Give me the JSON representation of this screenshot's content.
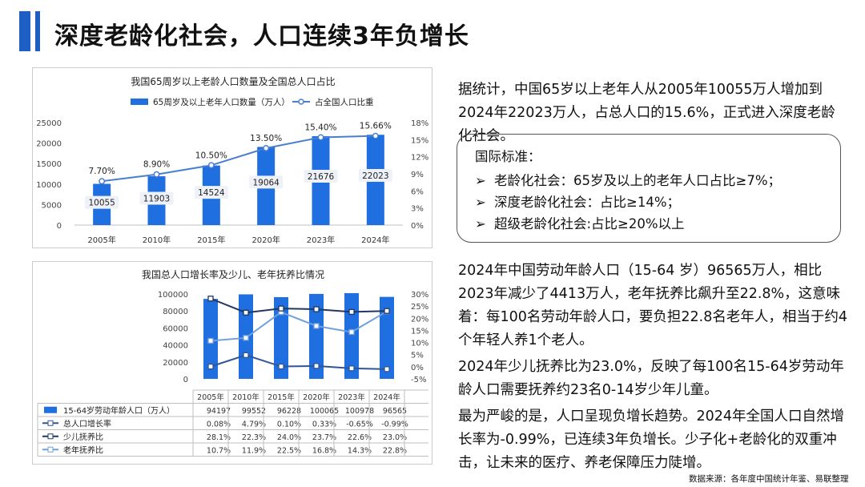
{
  "page": {
    "title": "深度老龄化社会，人口连续3年负增长",
    "source": "数据来源：各年度中国统计年鉴、易联整理"
  },
  "paragraphs": {
    "p1": "据统计，中国65岁以上老年人从2005年10055万人增加到2024年22023万人，占总人口的15.6%，正式进入深度老龄化社会。",
    "p2": "2024年中国劳动年龄人口（15-64 岁）96565万人，相比2023年减少了4413万人，老年抚养比飙升至22.8%，这意味着：每100名劳动年龄人口，要负担22.8名老年人，相当于约4个年轻人养1个老人。",
    "p3": "2024年少儿抚养比为23.0%，反映了每100名15-64岁劳动年龄人口需要抚养约23名0-14岁少年儿童。",
    "p4": "最为严峻的是，人口呈现负增长趋势。2024年全国人口自然增长率为-0.99%，已连续3年负增长。少子化+老龄化的双重冲击，让未来的医疗、养老保障压力陡增。"
  },
  "standards": {
    "title": "国际标准：",
    "arrow": "➢",
    "items": [
      "老龄化社会：65岁及以上的老年人口占比≥7%；",
      "深度老龄化社会：占比≥14%；",
      "超级老龄化社会:占比≥20%以上"
    ]
  },
  "colors": {
    "bar": "#1f6fe0",
    "line1": "#4a7fd0",
    "growth": "#2f5597",
    "child": "#1f3864",
    "old": "#70a0dc",
    "accent": "#1f5fc4"
  },
  "chart_data": [
    {
      "type": "bar",
      "title": "我国65周岁以上老龄人口数量及全国总人口占比",
      "categories": [
        "2005年",
        "2010年",
        "2015年",
        "2020年",
        "2023年",
        "2024年"
      ],
      "series": [
        {
          "name": "65周岁及以上老年人口数量（万人）",
          "type": "bar",
          "axis": "left",
          "values": [
            10055,
            11903,
            14524,
            19064,
            21676,
            22023
          ]
        },
        {
          "name": "占全国人口比重",
          "type": "line",
          "axis": "right",
          "values": [
            7.7,
            8.9,
            10.5,
            13.5,
            15.4,
            15.66
          ],
          "labels": [
            "7.70%",
            "8.90%",
            "10.50%",
            "13.50%",
            "15.40%",
            "15.66%"
          ]
        }
      ],
      "ylim_left": [
        0,
        25000
      ],
      "yticks_left": [
        "0",
        "5000",
        "10000",
        "15000",
        "20000",
        "25000"
      ],
      "ylim_right": [
        0,
        18
      ],
      "yticks_right": [
        "0%",
        "3%",
        "6%",
        "9%",
        "12%",
        "15%",
        "18%"
      ],
      "legend": "top",
      "grid": false
    },
    {
      "type": "bar",
      "title": "我国总人口增长率及少儿、老年抚养比情况",
      "categories": [
        "2005年",
        "2010年",
        "2015年",
        "2020年",
        "2023年",
        "2024年"
      ],
      "series": [
        {
          "name": "15-64岁劳动年龄人口（万人）",
          "type": "bar",
          "axis": "left",
          "values": [
            94197,
            99552,
            96228,
            100065,
            100978,
            96565
          ],
          "labels": [
            "94197",
            "99552",
            "96228",
            "100065",
            "100978",
            "96565"
          ]
        },
        {
          "name": "总人口增长率",
          "type": "line",
          "axis": "right",
          "values": [
            0.08,
            4.79,
            0.1,
            0.33,
            -0.65,
            -0.99
          ],
          "labels": [
            "0.08%",
            "4.79%",
            "0.10%",
            "0.33%",
            "-0.65%",
            "-0.99%"
          ]
        },
        {
          "name": "少儿抚养比",
          "type": "line",
          "axis": "right",
          "values": [
            28.1,
            22.3,
            24.0,
            23.7,
            22.6,
            23.0
          ],
          "labels": [
            "28.1%",
            "22.3%",
            "24.0%",
            "23.7%",
            "22.6%",
            "23.0%"
          ]
        },
        {
          "name": "老年抚养比",
          "type": "line",
          "axis": "right",
          "values": [
            10.7,
            11.9,
            22.5,
            16.8,
            14.3,
            22.8
          ],
          "labels": [
            "10.7%",
            "11.9%",
            "22.5%",
            "16.8%",
            "14.3%",
            "22.8%"
          ]
        }
      ],
      "ylim_left": [
        0,
        100000
      ],
      "yticks_left": [
        "0",
        "20000",
        "40000",
        "60000",
        "80000",
        "100000"
      ],
      "ylim_right": [
        -5,
        30
      ],
      "yticks_right": [
        "-5%",
        "0%",
        "5%",
        "10%",
        "15%",
        "20%",
        "25%",
        "30%"
      ],
      "legend": "data-table",
      "grid": false
    }
  ]
}
